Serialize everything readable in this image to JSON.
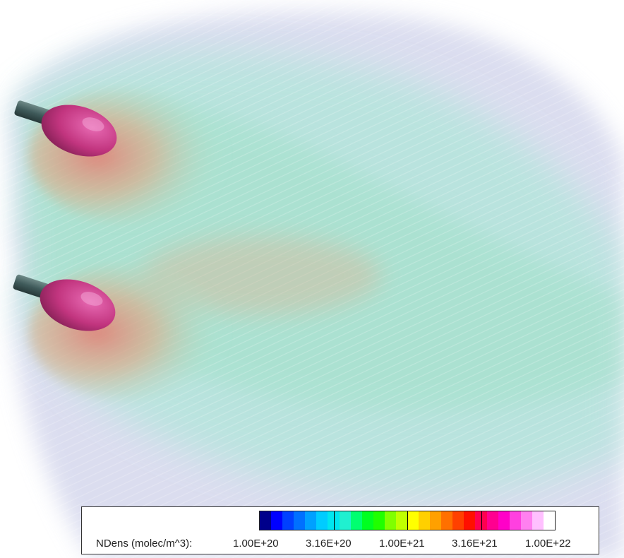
{
  "scene": {
    "colors": {
      "background": "#ffffff",
      "plume_outer": "#c9cce6",
      "plume_mid": "#9fe3d6",
      "plume_core": "#d98a78",
      "source_body": "#c2357f",
      "nozzle": "#3f5a5a"
    }
  },
  "legend": {
    "label": "NDens (molec/m^3):",
    "ticks": [
      "1.00E+20",
      "3.16E+20",
      "1.00E+21",
      "3.16E+21",
      "1.00E+22"
    ],
    "colors": [
      "#00008b",
      "#0000ff",
      "#0040ff",
      "#0070ff",
      "#00a0ff",
      "#00ccff",
      "#00e6f0",
      "#20f0d0",
      "#00ff70",
      "#00ff20",
      "#20ff00",
      "#80ff00",
      "#c0ff00",
      "#ffff00",
      "#ffd000",
      "#ffa000",
      "#ff7000",
      "#ff4000",
      "#ff1000",
      "#ff0050",
      "#ff0090",
      "#ff00c8",
      "#ff40e0",
      "#ff80f0",
      "#ffc0ff",
      "#ffffff"
    ]
  }
}
